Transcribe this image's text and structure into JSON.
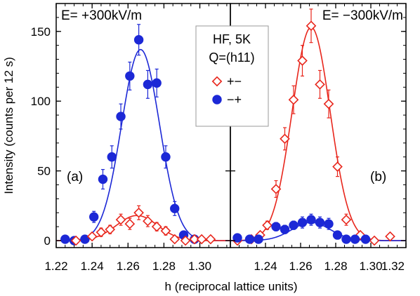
{
  "chart_data": {
    "type": "scatter",
    "xlabel": "h (reciprocal lattice units)",
    "ylabel": "Intensity (counts per 12 s)",
    "ylim": [
      -5,
      170
    ],
    "y_ticks": [
      0,
      50,
      100,
      150
    ],
    "legend": {
      "title_line1": "HF, 5K",
      "title_line2": "Q=(h11)",
      "entries": [
        {
          "label": "+−",
          "marker": "open-diamond",
          "color": "#e8261c"
        },
        {
          "label": "−+",
          "marker": "filled-circle",
          "color": "#1c28d6"
        }
      ]
    },
    "panels": [
      {
        "id": "a",
        "field_label": "E= +300kV/m",
        "panel_label": "(a)",
        "xlim": [
          1.22,
          1.317
        ],
        "x_ticks": [
          1.22,
          1.24,
          1.26,
          1.28,
          1.3
        ],
        "x_tick_labels": [
          "1.22",
          "1.24",
          "1.26",
          "1.28",
          "1.30"
        ],
        "series": [
          {
            "label": "−+",
            "marker": "filled-circle",
            "color": "#1c28d6",
            "points": [
              {
                "x": 1.225,
                "y": 1,
                "err": 2
              },
              {
                "x": 1.23,
                "y": 0,
                "err": 2
              },
              {
                "x": 1.236,
                "y": 1,
                "err": 2
              },
              {
                "x": 1.241,
                "y": 17,
                "err": 4
              },
              {
                "x": 1.246,
                "y": 44,
                "err": 7
              },
              {
                "x": 1.251,
                "y": 60,
                "err": 8
              },
              {
                "x": 1.256,
                "y": 89,
                "err": 9
              },
              {
                "x": 1.261,
                "y": 118,
                "err": 10
              },
              {
                "x": 1.266,
                "y": 144,
                "err": 11
              },
              {
                "x": 1.271,
                "y": 112,
                "err": 10
              },
              {
                "x": 1.276,
                "y": 113,
                "err": 10
              },
              {
                "x": 1.281,
                "y": 60,
                "err": 8
              },
              {
                "x": 1.286,
                "y": 23,
                "err": 5
              },
              {
                "x": 1.291,
                "y": 4,
                "err": 2
              },
              {
                "x": 1.297,
                "y": 1,
                "err": 2
              }
            ],
            "fit": {
              "amp": 137,
              "center": 1.267,
              "sigma": 0.0106,
              "base": 0
            }
          },
          {
            "label": "+−",
            "marker": "open-diamond",
            "color": "#e8261c",
            "points": [
              {
                "x": 1.231,
                "y": 0,
                "err": 2
              },
              {
                "x": 1.24,
                "y": 3,
                "err": 2
              },
              {
                "x": 1.245,
                "y": 6,
                "err": 3
              },
              {
                "x": 1.25,
                "y": 8,
                "err": 3
              },
              {
                "x": 1.256,
                "y": 15,
                "err": 4
              },
              {
                "x": 1.261,
                "y": 12,
                "err": 4
              },
              {
                "x": 1.266,
                "y": 20,
                "err": 5
              },
              {
                "x": 1.271,
                "y": 14,
                "err": 4
              },
              {
                "x": 1.276,
                "y": 10,
                "err": 3
              },
              {
                "x": 1.281,
                "y": 7,
                "err": 3
              },
              {
                "x": 1.286,
                "y": 1,
                "err": 2
              },
              {
                "x": 1.292,
                "y": 0,
                "err": 2
              },
              {
                "x": 1.297,
                "y": 1,
                "err": 2
              },
              {
                "x": 1.301,
                "y": 1,
                "err": 2
              },
              {
                "x": 1.306,
                "y": 1,
                "err": 2
              }
            ],
            "fit": {
              "amp": 18,
              "center": 1.265,
              "sigma": 0.0115,
              "base": 0
            }
          }
        ]
      },
      {
        "id": "b",
        "field_label": "E= −300kV/m",
        "panel_label": "(b)",
        "xlim": [
          1.22,
          1.32
        ],
        "x_ticks": [
          1.24,
          1.26,
          1.28,
          1.3,
          1.32
        ],
        "x_tick_labels": [
          "1.24",
          "1.26",
          "1.28",
          "1.30",
          "1.32"
        ],
        "series": [
          {
            "label": "+−",
            "marker": "open-diamond",
            "color": "#e8261c",
            "points": [
              {
                "x": 1.224,
                "y": 0,
                "err": 2
              },
              {
                "x": 1.232,
                "y": 1,
                "err": 2
              },
              {
                "x": 1.237,
                "y": 4,
                "err": 2
              },
              {
                "x": 1.241,
                "y": 11,
                "err": 3
              },
              {
                "x": 1.246,
                "y": 37,
                "err": 6
              },
              {
                "x": 1.251,
                "y": 73,
                "err": 8
              },
              {
                "x": 1.256,
                "y": 101,
                "err": 10
              },
              {
                "x": 1.261,
                "y": 129,
                "err": 11
              },
              {
                "x": 1.266,
                "y": 154,
                "err": 12
              },
              {
                "x": 1.271,
                "y": 112,
                "err": 10
              },
              {
                "x": 1.276,
                "y": 98,
                "err": 10
              },
              {
                "x": 1.281,
                "y": 53,
                "err": 7
              },
              {
                "x": 1.286,
                "y": 15,
                "err": 4
              },
              {
                "x": 1.294,
                "y": 4,
                "err": 2
              },
              {
                "x": 1.302,
                "y": 0,
                "err": 2
              },
              {
                "x": 1.311,
                "y": 3,
                "err": 2
              }
            ],
            "fit": {
              "amp": 153,
              "center": 1.266,
              "sigma": 0.0108,
              "base": 0
            }
          },
          {
            "label": "−+",
            "marker": "filled-circle",
            "color": "#1c28d6",
            "points": [
              {
                "x": 1.224,
                "y": 2,
                "err": 2
              },
              {
                "x": 1.231,
                "y": 1,
                "err": 2
              },
              {
                "x": 1.236,
                "y": 1,
                "err": 2
              },
              {
                "x": 1.246,
                "y": 10,
                "err": 3
              },
              {
                "x": 1.251,
                "y": 8,
                "err": 3
              },
              {
                "x": 1.256,
                "y": 11,
                "err": 3
              },
              {
                "x": 1.261,
                "y": 13,
                "err": 4
              },
              {
                "x": 1.266,
                "y": 15,
                "err": 4
              },
              {
                "x": 1.271,
                "y": 13,
                "err": 4
              },
              {
                "x": 1.276,
                "y": 12,
                "err": 4
              },
              {
                "x": 1.281,
                "y": 4,
                "err": 2
              },
              {
                "x": 1.286,
                "y": 1,
                "err": 2
              },
              {
                "x": 1.291,
                "y": 1,
                "err": 2
              },
              {
                "x": 1.297,
                "y": 1,
                "err": 2
              }
            ],
            "fit": {
              "amp": 13,
              "center": 1.266,
              "sigma": 0.011,
              "base": 0
            }
          }
        ]
      }
    ]
  }
}
